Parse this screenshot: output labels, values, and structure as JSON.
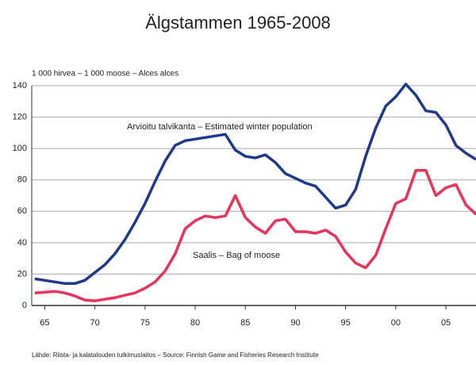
{
  "chart_data": {
    "type": "line",
    "title": "Älgstammen 1965-2008",
    "y_label": "1 000 hirvea – 1 000 moose – Alces alces",
    "source": "Lähde: Riista- ja kalatalouden tutkimuslaitos – Source: Finnish Game and Fisheries Research Institute",
    "x": [
      1964,
      1965,
      1966,
      1967,
      1968,
      1969,
      1970,
      1971,
      1972,
      1973,
      1974,
      1975,
      1976,
      1977,
      1978,
      1979,
      1980,
      1981,
      1982,
      1983,
      1984,
      1985,
      1986,
      1987,
      1988,
      1989,
      1990,
      1991,
      1992,
      1993,
      1994,
      1995,
      1996,
      1997,
      1998,
      1999,
      2000,
      2001,
      2002,
      2003,
      2004,
      2005,
      2006,
      2007,
      2008
    ],
    "series": [
      {
        "name": "Arvioitu talvikanta – Estimated winter population",
        "color": "#1f3a8a",
        "values": [
          17,
          16,
          15,
          14,
          14,
          16,
          21,
          26,
          33,
          42,
          53,
          65,
          79,
          92,
          102,
          105,
          106,
          107,
          108,
          109,
          99,
          95,
          94,
          96,
          91,
          84,
          81,
          78,
          76,
          69,
          62,
          64,
          74,
          95,
          113,
          127,
          133,
          141,
          134,
          124,
          123,
          115,
          102,
          97,
          93
        ]
      },
      {
        "name": "Saalis – Bag of moose",
        "color": "#e8335a",
        "values": [
          8,
          8.5,
          9,
          8,
          6,
          3.5,
          3,
          4,
          5,
          6.5,
          8,
          11,
          15,
          22,
          33,
          49,
          54,
          57,
          56,
          57,
          70,
          56,
          50,
          46,
          54,
          55,
          47,
          47,
          46,
          48,
          44,
          34,
          27,
          24,
          32,
          49,
          65,
          68,
          86,
          86,
          70,
          75,
          77,
          64,
          58
        ]
      }
    ],
    "xlim": [
      1963.7,
      2008
    ],
    "xticks": [
      {
        "value": 1965,
        "label": "65"
      },
      {
        "value": 1970,
        "label": "70"
      },
      {
        "value": 1975,
        "label": "75"
      },
      {
        "value": 1980,
        "label": "80"
      },
      {
        "value": 1985,
        "label": "85"
      },
      {
        "value": 1990,
        "label": "90"
      },
      {
        "value": 1995,
        "label": "95"
      },
      {
        "value": 2000,
        "label": "00"
      },
      {
        "value": 2005,
        "label": "05"
      }
    ],
    "ylim": [
      0,
      140
    ],
    "yticks": [
      0,
      20,
      40,
      60,
      80,
      100,
      120,
      140
    ],
    "grid": true
  }
}
